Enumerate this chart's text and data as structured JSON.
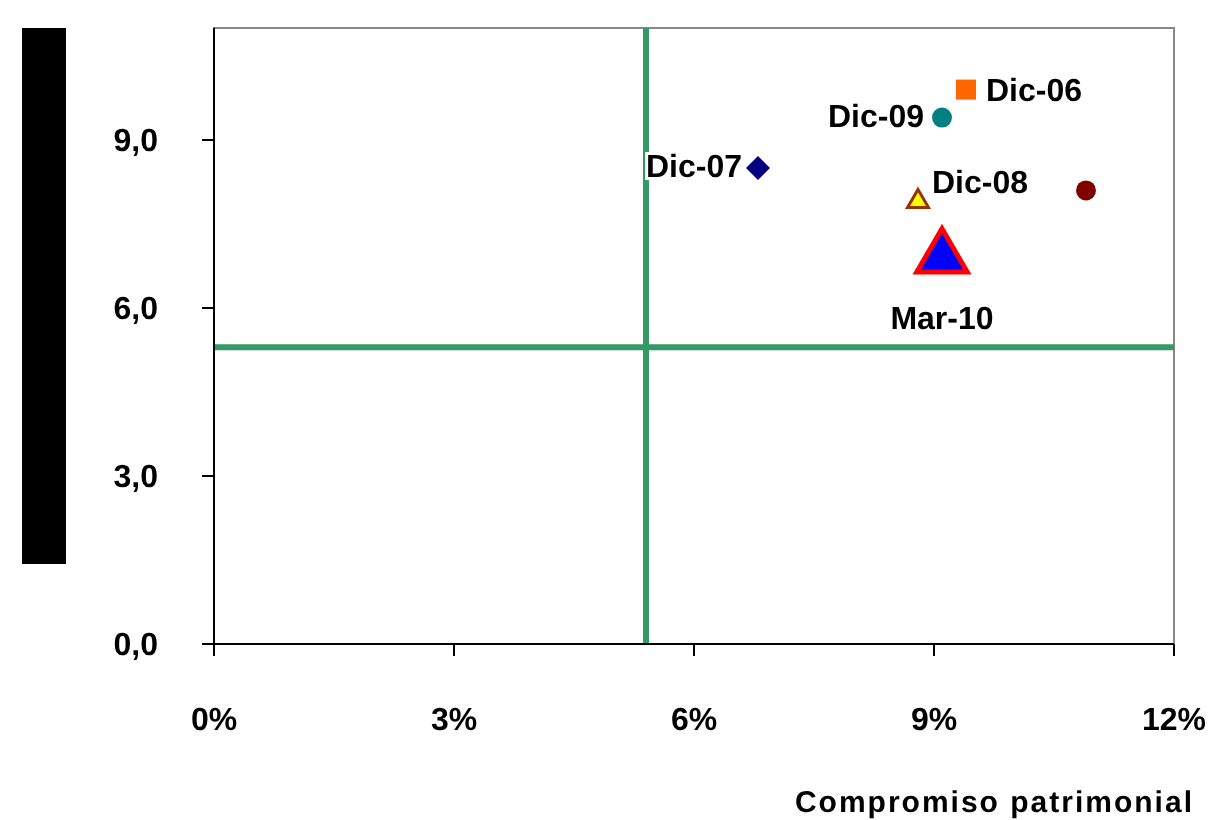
{
  "chart_data": {
    "type": "scatter",
    "xlabel": "Compromiso patrimonial",
    "xlim": [
      0,
      12
    ],
    "xticks": [
      {
        "value": 0,
        "label": "0%"
      },
      {
        "value": 3,
        "label": "3%"
      },
      {
        "value": 6,
        "label": "6%"
      },
      {
        "value": 9,
        "label": "9%"
      },
      {
        "value": 12,
        "label": "12%"
      }
    ],
    "ylim": [
      0,
      11
    ],
    "yticks": [
      {
        "value": 0,
        "label": "0,0"
      },
      {
        "value": 3,
        "label": "3,0"
      },
      {
        "value": 6,
        "label": "6,0"
      },
      {
        "value": 9,
        "label": "9,0"
      }
    ],
    "grid": false,
    "ref_lines": [
      {
        "axis": "x",
        "value": 5.4,
        "color": "#339966"
      },
      {
        "axis": "y",
        "value": 5.3,
        "color": "#339966"
      }
    ],
    "series": [
      {
        "name": "Dic-06",
        "color": "#ff6600",
        "marker": "square",
        "x": [
          9.4
        ],
        "values": [
          9.9
        ]
      },
      {
        "name": "Dic-09",
        "color": "#008080",
        "marker": "circle",
        "x": [
          9.1
        ],
        "values": [
          9.4
        ]
      },
      {
        "name": "Dic-07",
        "color": "#000080",
        "marker": "diamond",
        "x": [
          6.8
        ],
        "values": [
          8.5
        ]
      },
      {
        "name": "Dic-08",
        "color": "#ffff00",
        "marker": "triangle",
        "x": [
          8.8
        ],
        "values": [
          7.9
        ]
      },
      {
        "color": "#800000",
        "marker": "circle",
        "x": [
          10.9
        ],
        "values": [
          8.1
        ]
      },
      {
        "name": "Mar-10",
        "color": "#0000ff",
        "marker": "triangle",
        "x": [
          9.1
        ],
        "values": [
          6.9
        ]
      }
    ]
  }
}
